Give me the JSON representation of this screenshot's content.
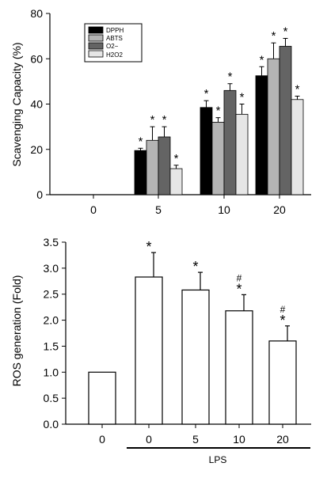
{
  "chart_data": [
    {
      "type": "bar",
      "categories": [
        "0",
        "5",
        "10",
        "20"
      ],
      "ylabel": "Scavenging Capacity (%)",
      "ylim": [
        0,
        80
      ],
      "yticks": [
        "0",
        "20",
        "40",
        "60",
        "80"
      ],
      "legend_position": "top-left",
      "series": [
        {
          "name": "DPPH",
          "color": "#000000",
          "values": [
            0,
            19.5,
            38.5,
            52.5
          ],
          "errors": [
            0,
            1,
            3,
            4
          ]
        },
        {
          "name": "ABTS",
          "color": "#b4b4b4",
          "values": [
            0,
            24,
            32,
            60
          ],
          "errors": [
            0,
            6,
            2,
            7
          ]
        },
        {
          "name": "O2−",
          "color": "#646464",
          "values": [
            0,
            25.5,
            46,
            65.5
          ],
          "errors": [
            0,
            4.5,
            3,
            3.5
          ]
        },
        {
          "name": "H2O2",
          "color": "#e6e6e6",
          "values": [
            0,
            11.5,
            35.5,
            42
          ],
          "errors": [
            0,
            1.5,
            4.5,
            1.5
          ]
        }
      ],
      "significance_marks": [
        {
          "series": 0,
          "category": 1,
          "text": "*"
        },
        {
          "series": 1,
          "category": 1,
          "text": "*"
        },
        {
          "series": 2,
          "category": 1,
          "text": "*"
        },
        {
          "series": 3,
          "category": 1,
          "text": "*"
        },
        {
          "series": 0,
          "category": 2,
          "text": "*"
        },
        {
          "series": 1,
          "category": 2,
          "text": "*"
        },
        {
          "series": 2,
          "category": 2,
          "text": "*"
        },
        {
          "series": 3,
          "category": 2,
          "text": "*"
        },
        {
          "series": 0,
          "category": 3,
          "text": "*"
        },
        {
          "series": 1,
          "category": 3,
          "text": "*"
        },
        {
          "series": 2,
          "category": 3,
          "text": "*"
        },
        {
          "series": 3,
          "category": 3,
          "text": "*"
        }
      ]
    },
    {
      "type": "bar",
      "categories": [
        "0",
        "0",
        "5",
        "10",
        "20"
      ],
      "values": [
        1.0,
        2.83,
        2.58,
        2.18,
        1.6
      ],
      "errors": [
        0,
        0.47,
        0.34,
        0.31,
        0.29
      ],
      "ylabel": "ROS generation (Fold)",
      "ylim": [
        0,
        3.5
      ],
      "yticks": [
        "0.0",
        "0.5",
        "1.0",
        "1.5",
        "2.0",
        "2.5",
        "3.0",
        "3.5"
      ],
      "group_label": "LPS",
      "marks": [
        [],
        [
          "*"
        ],
        [
          "*"
        ],
        [
          "#",
          "*"
        ],
        [
          "#",
          "*"
        ]
      ]
    }
  ]
}
